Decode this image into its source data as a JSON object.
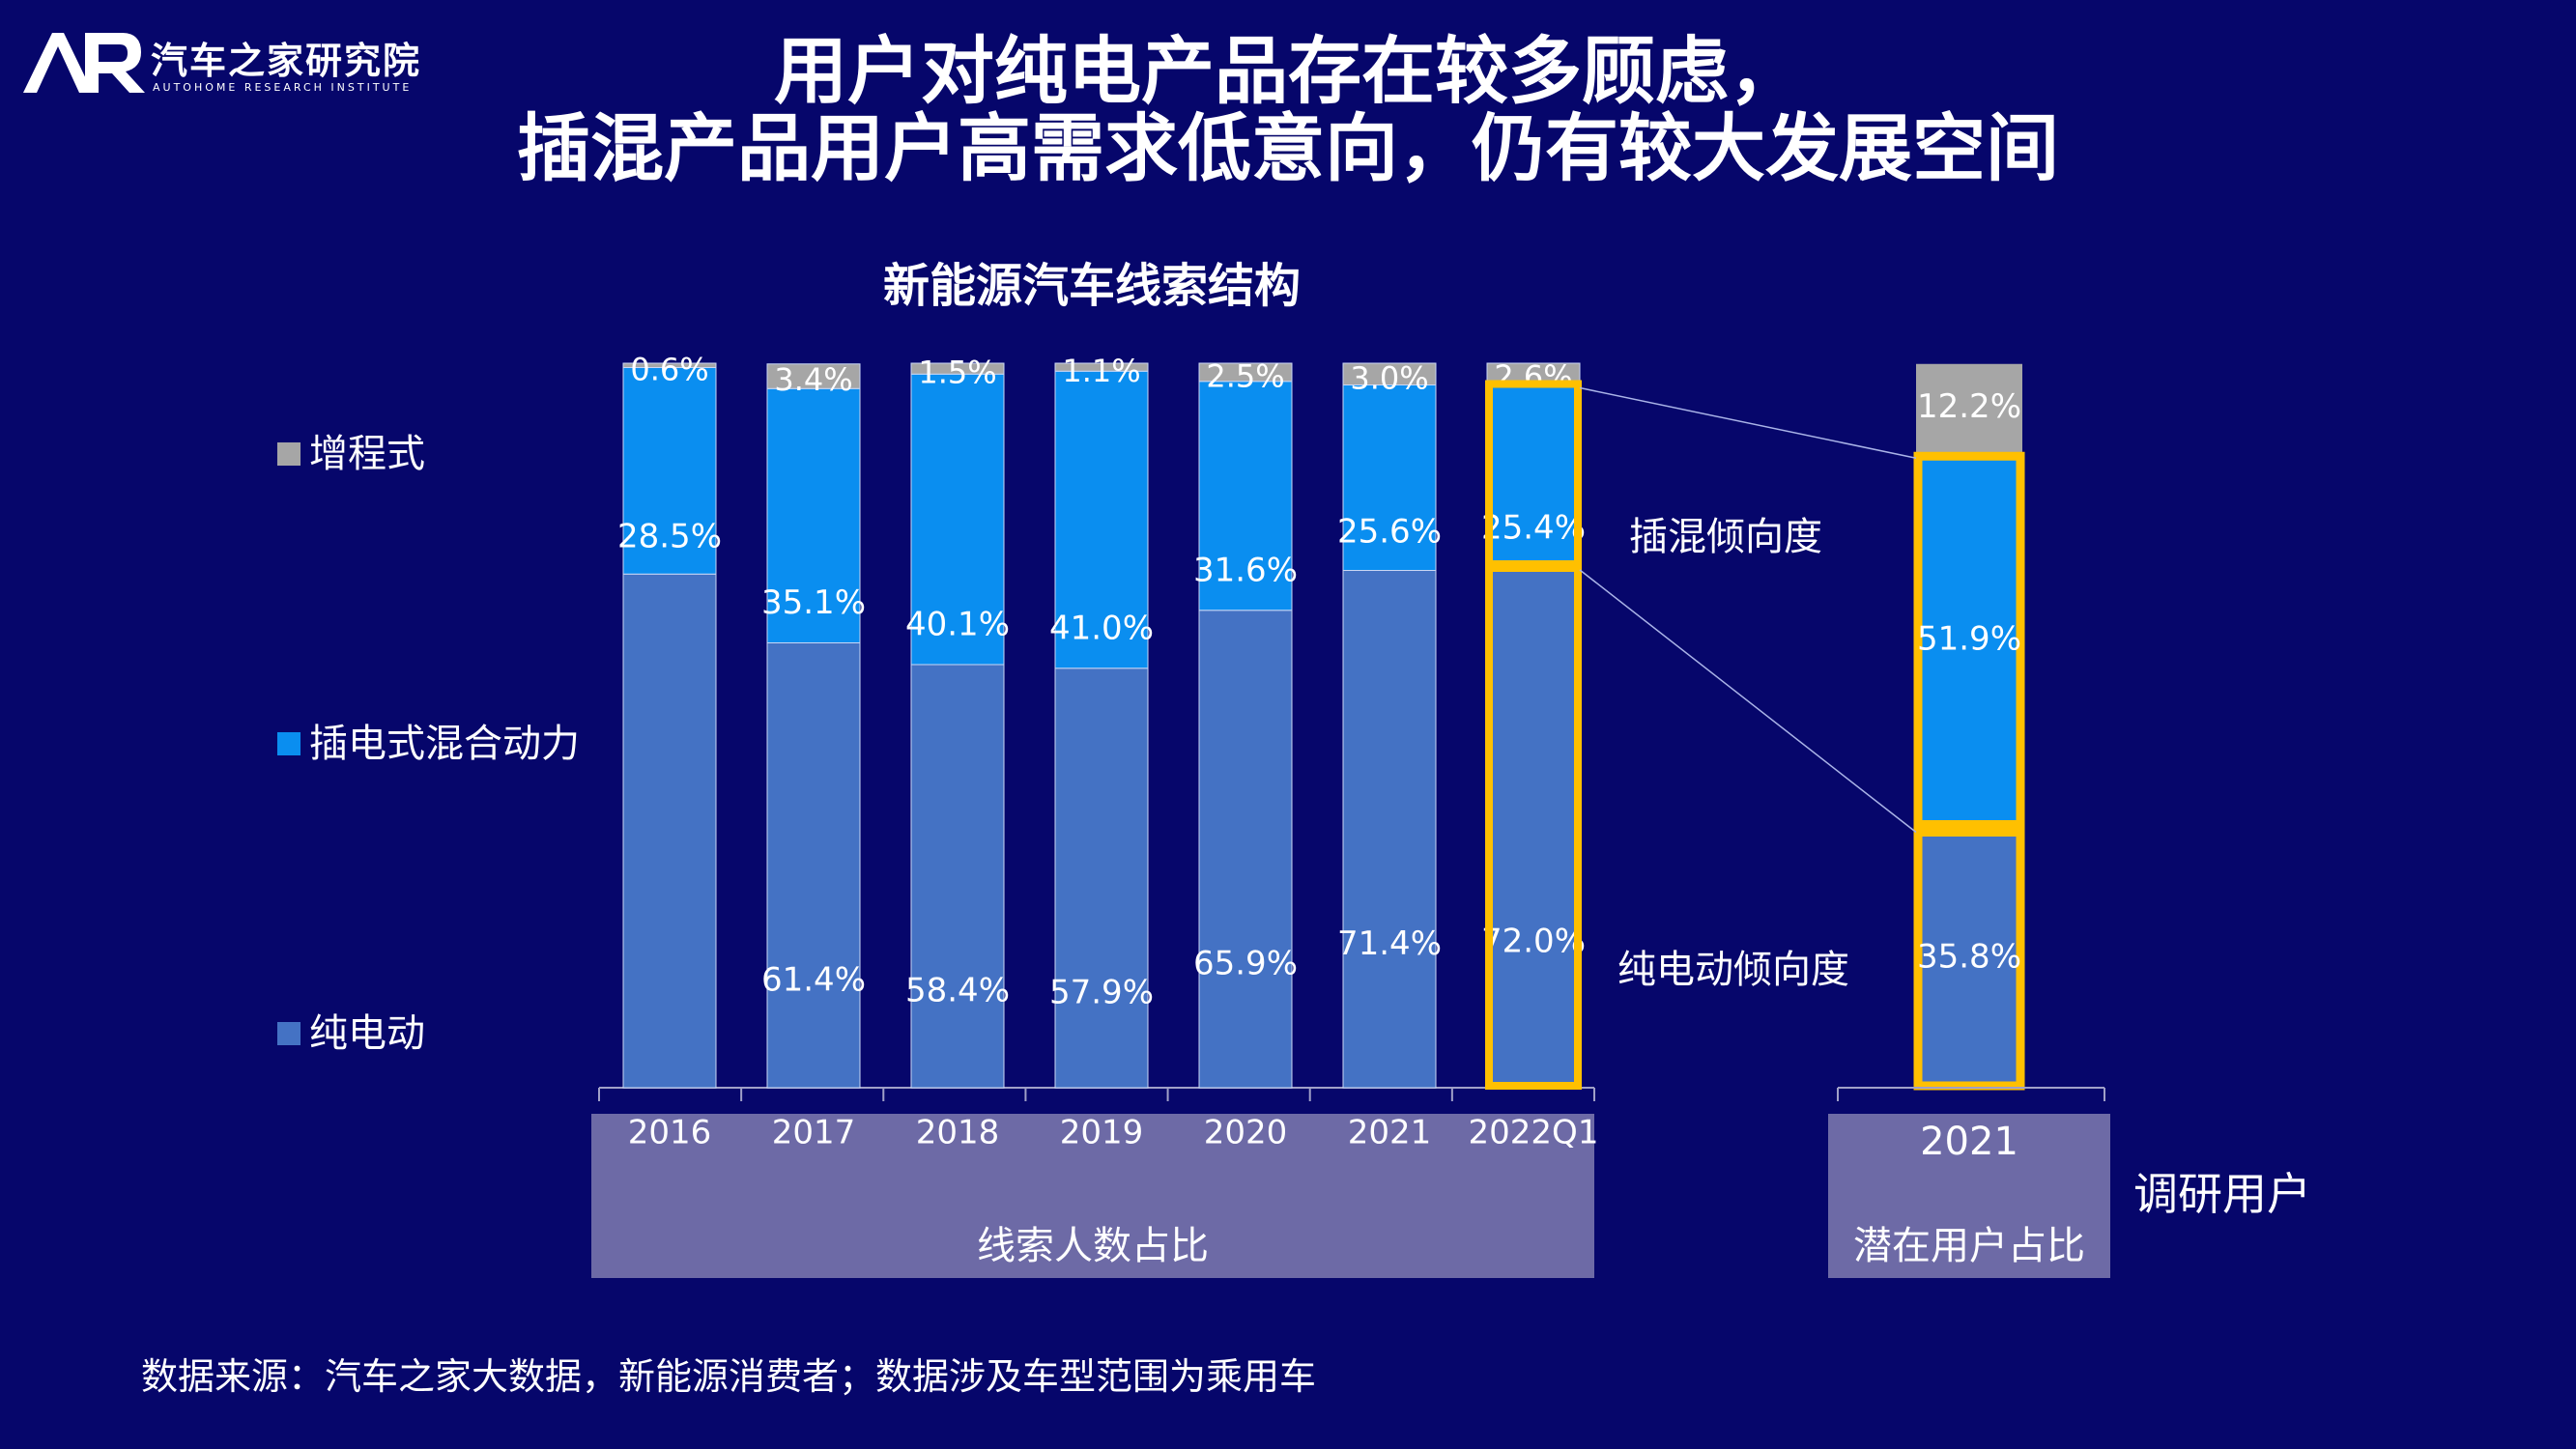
{
  "logo": {
    "mark": "AR",
    "name": "汽车之家研究院",
    "subtitle": "AUTOHOME RESEARCH INSTITUTE"
  },
  "title": {
    "line1": "用户对纯电产品存在较多顾虑，",
    "line2": "插混产品用户高需求低意向，仍有较大发展空间"
  },
  "colors": {
    "background": "#06066b",
    "ev": "#4472c4",
    "phev": "#0a8ef0",
    "erev": "#a6a6a6",
    "highlight": "#ffc000",
    "panel": "#6d6aa6"
  },
  "chart_data": {
    "type": "bar",
    "stacked": true,
    "title": "新能源汽车线索结构",
    "legend": [
      "增程式",
      "插电式混合动力",
      "纯电动"
    ],
    "legend_position": "left",
    "categories": [
      "2016",
      "2017",
      "2018",
      "2019",
      "2020",
      "2021",
      "2022Q1"
    ],
    "group_label": "线索人数占比",
    "series": [
      {
        "name": "纯电动",
        "values": [
          70.9,
          61.4,
          58.4,
          57.9,
          65.9,
          71.4,
          72.0
        ],
        "labels": [
          "",
          "61.4%",
          "58.4%",
          "57.9%",
          "65.9%",
          "71.4%",
          "72.0%"
        ]
      },
      {
        "name": "插电式混合动力",
        "values": [
          28.5,
          35.1,
          40.1,
          41.0,
          31.6,
          25.6,
          25.4
        ],
        "labels": [
          "28.5%",
          "35.1%",
          "40.1%",
          "41.0%",
          "31.6%",
          "25.6%",
          "25.4%"
        ]
      },
      {
        "name": "增程式",
        "values": [
          0.6,
          3.4,
          1.5,
          1.1,
          2.5,
          3.0,
          2.6
        ],
        "labels": [
          "0.6%",
          "3.4%",
          "1.5%",
          "1.1%",
          "2.5%",
          "3.0%",
          "2.6%"
        ]
      }
    ],
    "survey": {
      "category": "2021",
      "group_label": "潜在用户占比",
      "side_label": "调研用户",
      "series": [
        {
          "name": "纯电动",
          "value": 35.8,
          "label": "35.8%"
        },
        {
          "name": "插电式混合动力",
          "value": 51.9,
          "label": "51.9%"
        },
        {
          "name": "增程式",
          "value": 12.2,
          "label": "12.2%"
        }
      ]
    },
    "annotations": [
      "插混倾向度",
      "纯电动倾向度"
    ],
    "highlighted": [
      "2022Q1",
      "2021-survey"
    ],
    "ylim": [
      0,
      100
    ]
  },
  "footnote": "数据来源：汽车之家大数据，新能源消费者；数据涉及车型范围为乘用车"
}
